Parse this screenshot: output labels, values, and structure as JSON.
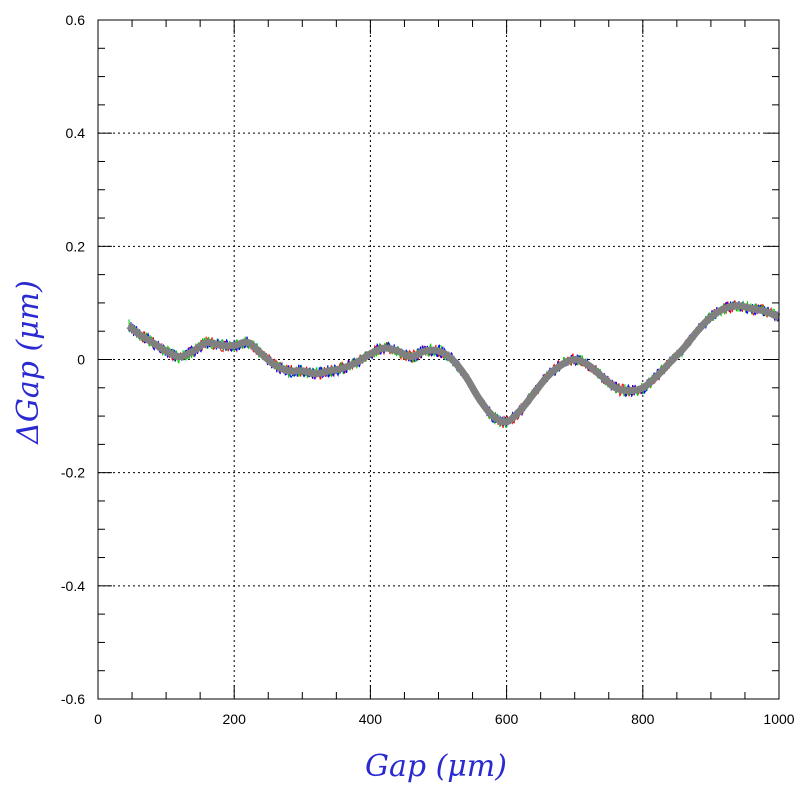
{
  "chart_data": {
    "type": "line",
    "title": "",
    "xlabel": "Gap  (μm)",
    "ylabel": "ΔGap  (μm)",
    "xlim": [
      0,
      1000
    ],
    "ylim": [
      -0.6,
      0.6
    ],
    "x_ticks": [
      0,
      200,
      400,
      600,
      800,
      1000
    ],
    "x_tick_labels": [
      "0",
      "200",
      "400",
      "600",
      "800",
      "1000"
    ],
    "y_ticks": [
      -0.6,
      -0.4,
      -0.2,
      0,
      0.2,
      0.4,
      0.6
    ],
    "y_tick_labels": [
      "-0.6",
      "-0.4",
      "-0.2",
      "0",
      "0.2",
      "0.4",
      "0.6"
    ],
    "grid": true,
    "grid_style": "dotted",
    "axis_label_color": "#2a2ad0",
    "series": [
      {
        "color": "#808080",
        "x": [
          45,
          60,
          80,
          100,
          120,
          140,
          160,
          180,
          200,
          220,
          240,
          260,
          280,
          300,
          320,
          340,
          360,
          380,
          400,
          420,
          440,
          460,
          480,
          500,
          520,
          540,
          560,
          580,
          600,
          620,
          640,
          660,
          680,
          700,
          720,
          740,
          760,
          780,
          800,
          820,
          840,
          860,
          880,
          900,
          920,
          940,
          960,
          980,
          1000
        ],
        "y": [
          0.06,
          0.045,
          0.03,
          0.015,
          0.005,
          0.015,
          0.03,
          0.025,
          0.025,
          0.03,
          0.01,
          -0.01,
          -0.02,
          -0.02,
          -0.025,
          -0.02,
          -0.015,
          -0.005,
          0.01,
          0.02,
          0.015,
          0.005,
          0.015,
          0.015,
          0.0,
          -0.03,
          -0.07,
          -0.1,
          -0.11,
          -0.09,
          -0.06,
          -0.03,
          -0.01,
          0.0,
          -0.01,
          -0.03,
          -0.05,
          -0.055,
          -0.05,
          -0.03,
          -0.005,
          0.02,
          0.05,
          0.075,
          0.09,
          0.095,
          0.09,
          0.085,
          0.075
        ]
      }
    ],
    "noise_colors": [
      "#ff0000",
      "#00cc00",
      "#0000ff"
    ]
  }
}
